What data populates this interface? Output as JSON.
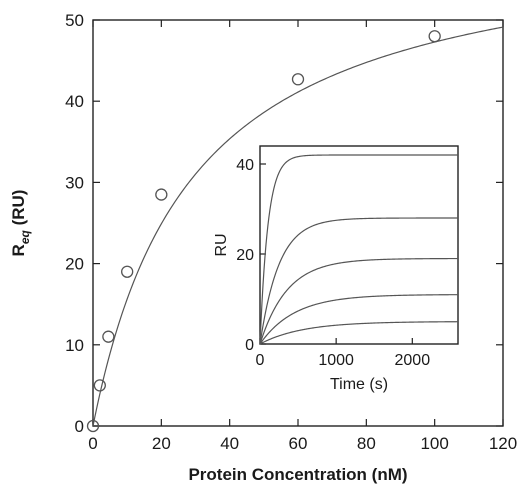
{
  "chart_data": [
    {
      "type": "scatter",
      "title": "",
      "xlabel": "Protein Concentration (nM)",
      "ylabel": {
        "main": "R",
        "subscript": "eq",
        "unit": " (RU)"
      },
      "xlim": [
        0,
        120
      ],
      "ylim": [
        0,
        50
      ],
      "xticks": [
        0,
        20,
        40,
        60,
        80,
        100,
        120
      ],
      "yticks": [
        0,
        10,
        20,
        30,
        40,
        50
      ],
      "grid": false,
      "points": [
        {
          "x": 0,
          "y": 0
        },
        {
          "x": 2,
          "y": 5
        },
        {
          "x": 4.5,
          "y": 11
        },
        {
          "x": 10,
          "y": 19
        },
        {
          "x": 20,
          "y": 28.5
        },
        {
          "x": 60,
          "y": 42.7
        },
        {
          "x": 100,
          "y": 48
        }
      ],
      "fit": {
        "model": "langmuir",
        "rmax": 61,
        "kd": 29
      }
    },
    {
      "type": "line",
      "title": "",
      "xlabel": "Time (s)",
      "ylabel": "RU",
      "xlim": [
        0,
        2600
      ],
      "ylim": [
        0,
        44
      ],
      "xticks": [
        0,
        1000,
        2000
      ],
      "yticks": [
        0,
        20,
        40
      ],
      "grid": false,
      "series": [
        {
          "plateau": 42,
          "rate": 0.0095
        },
        {
          "plateau": 28,
          "rate": 0.004
        },
        {
          "plateau": 19,
          "rate": 0.0028
        },
        {
          "plateau": 11,
          "rate": 0.0022
        },
        {
          "plateau": 5,
          "rate": 0.0018
        }
      ]
    }
  ]
}
